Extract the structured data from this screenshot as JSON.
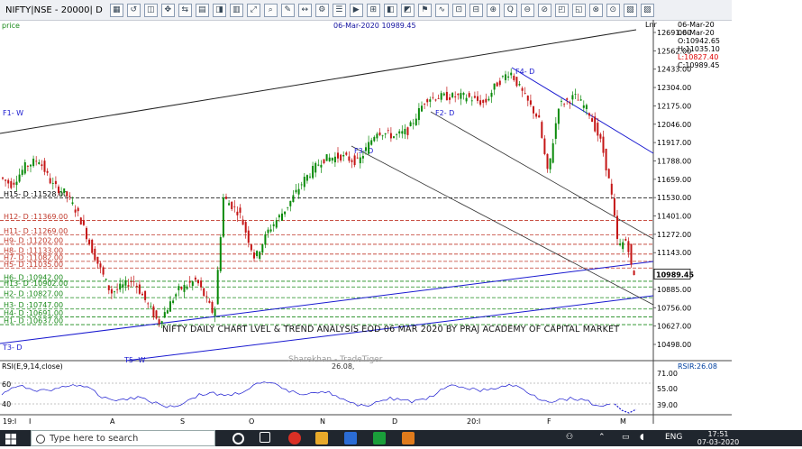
{
  "toolbar": {
    "symbol": "NIFTY|NSE - 20000| D",
    "buttons": [
      "▦",
      "↺",
      "◫",
      "✥",
      "⇆",
      "▤",
      "◨",
      "▥",
      "⤢",
      "⌕",
      "✎",
      "↔",
      "⚙",
      "☰",
      "▶",
      "⊞",
      "◧",
      "◩",
      "⚑",
      "∿",
      "⊡",
      "⊟",
      "⊕",
      "Q",
      "⊖",
      "⊘",
      "◰",
      "◱",
      "⊗",
      "⊙",
      "▧",
      "▨"
    ]
  },
  "price_label": "price",
  "title": "06-Mar-2020 10989.45",
  "lnr": "Lnr",
  "ohlc": {
    "date1": "06-Mar-20",
    "date2": "06-Mar-20",
    "open": "O:10942.65",
    "high": "H:11035.10",
    "low": "L:10827.40",
    "close": "C:10989.45"
  },
  "levels": [
    {
      "label": "H15- D :11528.00",
      "price": 11528,
      "color": "#000000",
      "dash": "4,2"
    },
    {
      "label": "H12- D :11369.00",
      "price": 11369,
      "color": "#c0392b",
      "dash": "4,2"
    },
    {
      "label": "H11- D :11269.00",
      "price": 11269,
      "color": "#c0392b",
      "dash": "4,2"
    },
    {
      "label": "H9- D :11202.00",
      "price": 11202,
      "color": "#c0392b",
      "dash": "4,2"
    },
    {
      "label": "H8- D :11133.00",
      "price": 11133,
      "color": "#c0392b",
      "dash": "4,2"
    },
    {
      "label": "H7- D :11082.00",
      "price": 11082,
      "color": "#c0392b",
      "dash": "4,2"
    },
    {
      "label": "H5- D :11035.00",
      "price": 11035,
      "color": "#c0392b",
      "dash": "4,2"
    },
    {
      "label": "H6- D :10942.00",
      "price": 10942,
      "color": "#1a8a1a",
      "dash": "4,2"
    },
    {
      "label": "H13- D :10902.00",
      "price": 10902,
      "color": "#1a8a1a",
      "dash": "4,2"
    },
    {
      "label": "H2- D :10827.00",
      "price": 10827,
      "color": "#1a8a1a",
      "dash": "4,2"
    },
    {
      "label": "H3- D :10747.00",
      "price": 10747,
      "color": "#1a8a1a",
      "dash": "4,2"
    },
    {
      "label": "H4- D :10691.00",
      "price": 10691,
      "color": "#1a8a1a",
      "dash": "4,2"
    },
    {
      "label": "H1- D :10637.00",
      "price": 10637,
      "color": "#1a8a1a",
      "dash": "4,2"
    }
  ],
  "trend_labels": [
    "F1- W",
    "F3- D",
    "F2- D",
    "F4- D",
    "T3- D",
    "T5- W"
  ],
  "price_axis": [
    "12691.00",
    "12562.00",
    "12433.00",
    "12304.00",
    "12175.00",
    "12046.00",
    "11917.00",
    "11788.00",
    "11659.00",
    "11530.00",
    "11401.00",
    "11272.00",
    "11143.00",
    "10989.45",
    "10885.00",
    "10756.00",
    "10627.00",
    "10498.00"
  ],
  "current_price": "10989.45",
  "headline": "NIFTY DAILY CHART LVEL & TREND ANALYSIS EOD 06 MAR 2020 BY PRAJ ACADEMY OF CAPITAL MARKET",
  "watermark": "Sharekhan - TradeTiger",
  "rsi": {
    "label": "RSI(E,9,14,close)",
    "value": "26.08,",
    "right": "RSIR:26.08",
    "left_ticks": [
      "60",
      "40"
    ],
    "right_ticks": [
      "71.00",
      "55.00",
      "39.00"
    ]
  },
  "x_axis": [
    "19:J",
    "J",
    "A",
    "S",
    "O",
    "N",
    "D",
    "20:J",
    "F",
    "M"
  ],
  "taskbar": {
    "search_placeholder": "Type here to search",
    "lang": "ENG",
    "time": "17:51",
    "date": "07-03-2020"
  },
  "colors": {
    "up": "#0a8a0a",
    "down": "#c41515",
    "trend": "#1a1ad0",
    "background": "#ffffff"
  }
}
